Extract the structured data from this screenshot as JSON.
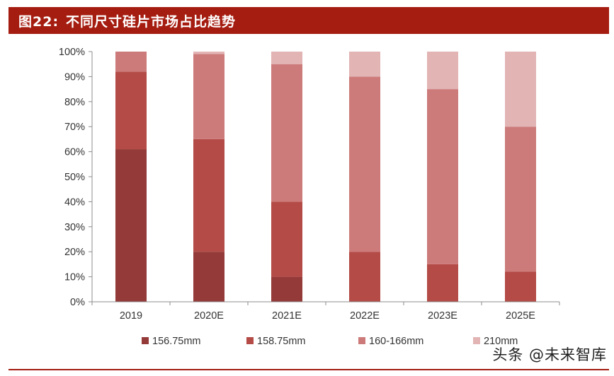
{
  "header": {
    "figure_number": "图22:",
    "title": "不同尺寸硅片市场占比趋势"
  },
  "watermark": "头条 @未来智库",
  "colors": {
    "title_bg": "#a51c10",
    "series": [
      "#943a38",
      "#b44b46",
      "#cc7b7a",
      "#e2b4b4"
    ]
  },
  "chart_data": {
    "type": "bar",
    "stacked": true,
    "categories": [
      "2019",
      "2020E",
      "2021E",
      "2022E",
      "2023E",
      "2025E"
    ],
    "series": [
      {
        "name": "156.75mm",
        "values": [
          61,
          20,
          10,
          0,
          0,
          0
        ]
      },
      {
        "name": "158.75mm",
        "values": [
          31,
          45,
          30,
          20,
          15,
          12
        ]
      },
      {
        "name": "160-166mm",
        "values": [
          8,
          34,
          55,
          70,
          70,
          58
        ]
      },
      {
        "name": "210mm",
        "values": [
          0,
          1,
          5,
          10,
          15,
          30
        ]
      }
    ],
    "ylim": [
      0,
      100
    ],
    "y_ticks": [
      "0%",
      "10%",
      "20%",
      "30%",
      "40%",
      "50%",
      "60%",
      "70%",
      "80%",
      "90%",
      "100%"
    ],
    "grid": false,
    "legend": "bottom"
  }
}
